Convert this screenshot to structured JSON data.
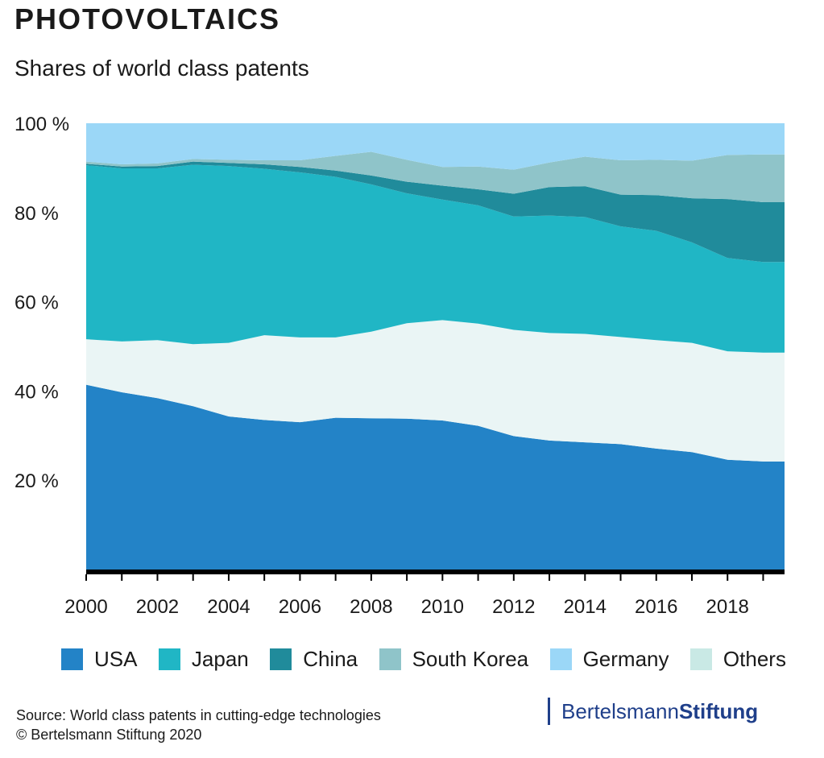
{
  "header": {
    "title": "PHOTOVOLTAICS",
    "subtitle": "Shares of world class patents"
  },
  "footer": {
    "source": "Source: World class patents in cutting-edge technologies",
    "copyright": "© Bertelsmann Stiftung 2020",
    "brand_part1": "Bertelsmann",
    "brand_part2": "Stiftung"
  },
  "chart_data": {
    "type": "area",
    "stacked": true,
    "title": "PHOTOVOLTAICS",
    "subtitle": "Shares of world class patents",
    "xlabel": "",
    "ylabel": "",
    "x": [
      2000,
      2001,
      2002,
      2003,
      2004,
      2005,
      2006,
      2007,
      2008,
      2009,
      2010,
      2011,
      2012,
      2013,
      2014,
      2015,
      2016,
      2017,
      2018,
      2019
    ],
    "x_ticks": [
      "2000",
      "2002",
      "2004",
      "2006",
      "2008",
      "2010",
      "2012",
      "2014",
      "2016",
      "2018"
    ],
    "x_tick_values": [
      2000,
      2002,
      2004,
      2006,
      2008,
      2010,
      2012,
      2014,
      2016,
      2018
    ],
    "y_ticks": [
      "20 %",
      "40 %",
      "60 %",
      "80 %",
      "100 %"
    ],
    "y_tick_values": [
      20,
      40,
      60,
      80,
      100
    ],
    "ylim": [
      0,
      100
    ],
    "xlim": [
      2000,
      2019.6
    ],
    "legend_position": "bottom",
    "series": [
      {
        "name": "USA",
        "color": "#2383c7",
        "values": [
          41.4,
          39.7,
          38.4,
          36.6,
          34.3,
          33.5,
          33.0,
          34.0,
          33.9,
          33.8,
          33.4,
          32.2,
          29.9,
          28.9,
          28.5,
          28.1,
          27.1,
          26.3,
          24.6,
          24.2
        ]
      },
      {
        "name": "Others",
        "color": "#eaf5f5",
        "values": [
          10.2,
          11.4,
          13.0,
          13.9,
          16.5,
          19.0,
          19.0,
          18.0,
          19.4,
          21.4,
          22.5,
          22.9,
          23.8,
          24.1,
          24.3,
          24.0,
          24.3,
          24.5,
          24.3,
          24.4
        ]
      },
      {
        "name": "Japan",
        "color": "#20b6c5",
        "values": [
          39.0,
          38.8,
          38.5,
          40.2,
          39.6,
          37.3,
          37.0,
          36.0,
          33.0,
          29.1,
          27.0,
          26.5,
          25.4,
          26.3,
          26.2,
          24.8,
          24.5,
          22.5,
          20.9,
          20.3
        ]
      },
      {
        "name": "China",
        "color": "#208b9b",
        "values": [
          0.3,
          0.4,
          0.5,
          0.7,
          0.7,
          1.0,
          1.2,
          1.4,
          2.0,
          2.6,
          3.1,
          3.6,
          5.1,
          6.4,
          6.9,
          7.1,
          8.0,
          9.9,
          13.2,
          13.4
        ]
      },
      {
        "name": "South Korea",
        "color": "#8fc4c9",
        "values": [
          0.5,
          0.5,
          0.6,
          0.6,
          0.7,
          0.9,
          1.5,
          3.3,
          5.3,
          4.9,
          4.2,
          5.1,
          5.4,
          5.5,
          6.6,
          7.7,
          7.9,
          8.4,
          9.9,
          10.7
        ]
      },
      {
        "name": "Germany",
        "color": "#9bd7f7",
        "values": [
          8.6,
          9.2,
          9.0,
          8.0,
          8.2,
          8.3,
          8.3,
          7.3,
          6.4,
          8.2,
          9.8,
          9.7,
          10.4,
          8.8,
          7.5,
          8.3,
          8.2,
          8.4,
          7.1,
          7.0
        ]
      }
    ],
    "legend_order": [
      "USA",
      "Japan",
      "China",
      "South Korea",
      "Germany",
      "Others"
    ],
    "legend_colors": {
      "USA": "#2383c7",
      "Japan": "#20b6c5",
      "China": "#208b9b",
      "South Korea": "#8fc4c9",
      "Germany": "#9bd7f7",
      "Others": "#c9e9e5"
    }
  }
}
